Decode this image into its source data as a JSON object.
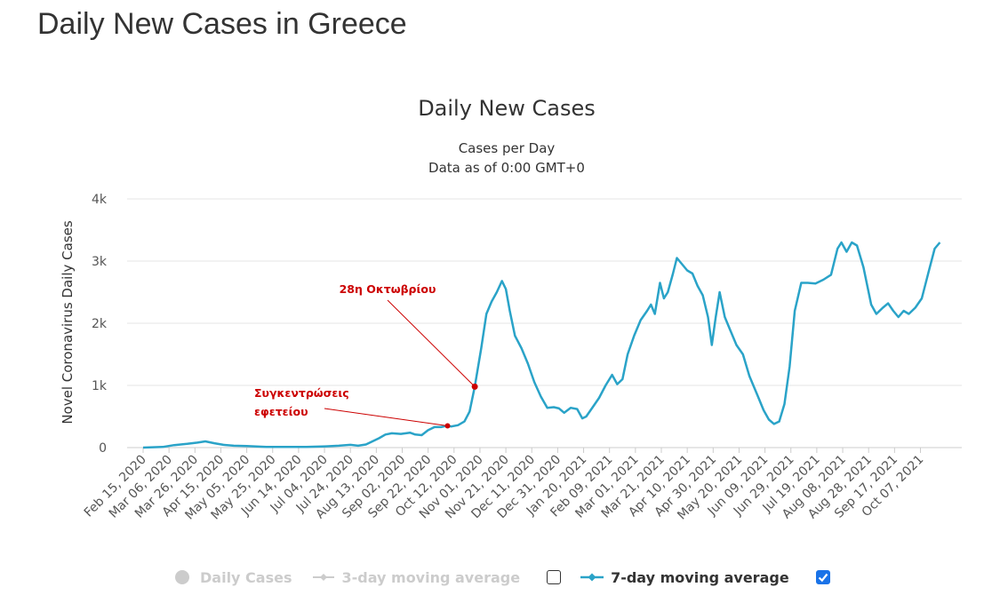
{
  "page": {
    "heading": "Daily New Cases in Greece"
  },
  "chart_data": {
    "type": "line",
    "title": "Daily New Cases",
    "subtitle_lines": [
      "Cases per Day",
      "Data as of 0:00 GMT+0"
    ],
    "ylabel": "Novel Coronavirus Daily Cases",
    "xlabel": "",
    "ylim": [
      0,
      4000
    ],
    "yticks": [
      0,
      1000,
      2000,
      3000,
      4000
    ],
    "ytick_labels": [
      "0",
      "1k",
      "2k",
      "3k",
      "4k"
    ],
    "xlim": [
      "2020-02-15",
      "2021-10-28"
    ],
    "xtick_labels": [
      "Feb 15, 2020",
      "Mar 06, 2020",
      "Mar 26, 2020",
      "Apr 15, 2020",
      "May 05, 2020",
      "May 25, 2020",
      "Jun 14, 2020",
      "Jul 04, 2020",
      "Jul 24, 2020",
      "Aug 13, 2020",
      "Sep 02, 2020",
      "Sep 22, 2020",
      "Oct 12, 2020",
      "Nov 01, 2020",
      "Nov 21, 2020",
      "Dec 11, 2020",
      "Dec 31, 2020",
      "Jan 20, 2021",
      "Feb 09, 2021",
      "Mar 01, 2021",
      "Mar 21, 2021",
      "Apr 10, 2021",
      "Apr 30, 2021",
      "May 20, 2021",
      "Jun 09, 2021",
      "Jun 29, 2021",
      "Jul 19, 2021",
      "Aug 08, 2021",
      "Aug 28, 2021",
      "Sep 17, 2021",
      "Oct 07, 2021"
    ],
    "grid": true,
    "series": [
      {
        "name": "7-day moving average",
        "color": "#2aa3c8",
        "visible": true,
        "points": [
          [
            "2020-02-15",
            0
          ],
          [
            "2020-03-01",
            10
          ],
          [
            "2020-03-10",
            40
          ],
          [
            "2020-03-20",
            60
          ],
          [
            "2020-03-28",
            80
          ],
          [
            "2020-04-03",
            100
          ],
          [
            "2020-04-10",
            70
          ],
          [
            "2020-04-17",
            45
          ],
          [
            "2020-04-25",
            30
          ],
          [
            "2020-05-05",
            25
          ],
          [
            "2020-05-20",
            12
          ],
          [
            "2020-06-05",
            10
          ],
          [
            "2020-06-20",
            12
          ],
          [
            "2020-07-05",
            20
          ],
          [
            "2020-07-15",
            30
          ],
          [
            "2020-07-24",
            45
          ],
          [
            "2020-07-30",
            30
          ],
          [
            "2020-08-05",
            50
          ],
          [
            "2020-08-10",
            100
          ],
          [
            "2020-08-15",
            150
          ],
          [
            "2020-08-20",
            210
          ],
          [
            "2020-08-25",
            230
          ],
          [
            "2020-09-01",
            220
          ],
          [
            "2020-09-08",
            240
          ],
          [
            "2020-09-12",
            210
          ],
          [
            "2020-09-17",
            200
          ],
          [
            "2020-09-22",
            280
          ],
          [
            "2020-09-27",
            330
          ],
          [
            "2020-10-02",
            330
          ],
          [
            "2020-10-06",
            350
          ],
          [
            "2020-10-10",
            340
          ],
          [
            "2020-10-15",
            360
          ],
          [
            "2020-10-20",
            420
          ],
          [
            "2020-10-24",
            580
          ],
          [
            "2020-10-28",
            980
          ],
          [
            "2020-11-02",
            1600
          ],
          [
            "2020-11-06",
            2150
          ],
          [
            "2020-11-10",
            2350
          ],
          [
            "2020-11-14",
            2500
          ],
          [
            "2020-11-18",
            2680
          ],
          [
            "2020-11-21",
            2550
          ],
          [
            "2020-11-24",
            2200
          ],
          [
            "2020-11-28",
            1800
          ],
          [
            "2020-12-03",
            1600
          ],
          [
            "2020-12-08",
            1350
          ],
          [
            "2020-12-13",
            1050
          ],
          [
            "2020-12-18",
            820
          ],
          [
            "2020-12-23",
            640
          ],
          [
            "2020-12-28",
            650
          ],
          [
            "2021-01-01",
            630
          ],
          [
            "2021-01-05",
            560
          ],
          [
            "2021-01-10",
            640
          ],
          [
            "2021-01-15",
            620
          ],
          [
            "2021-01-19",
            470
          ],
          [
            "2021-01-22",
            500
          ],
          [
            "2021-01-27",
            650
          ],
          [
            "2021-02-01",
            800
          ],
          [
            "2021-02-06",
            1000
          ],
          [
            "2021-02-11",
            1170
          ],
          [
            "2021-02-15",
            1020
          ],
          [
            "2021-02-19",
            1100
          ],
          [
            "2021-02-23",
            1500
          ],
          [
            "2021-02-28",
            1800
          ],
          [
            "2021-03-05",
            2050
          ],
          [
            "2021-03-10",
            2200
          ],
          [
            "2021-03-13",
            2300
          ],
          [
            "2021-03-16",
            2150
          ],
          [
            "2021-03-20",
            2650
          ],
          [
            "2021-03-23",
            2400
          ],
          [
            "2021-03-26",
            2500
          ],
          [
            "2021-03-30",
            2800
          ],
          [
            "2021-04-02",
            3050
          ],
          [
            "2021-04-06",
            2950
          ],
          [
            "2021-04-10",
            2850
          ],
          [
            "2021-04-14",
            2800
          ],
          [
            "2021-04-18",
            2600
          ],
          [
            "2021-04-22",
            2450
          ],
          [
            "2021-04-26",
            2100
          ],
          [
            "2021-04-29",
            1650
          ],
          [
            "2021-05-02",
            2100
          ],
          [
            "2021-05-05",
            2500
          ],
          [
            "2021-05-09",
            2100
          ],
          [
            "2021-05-13",
            1900
          ],
          [
            "2021-05-18",
            1650
          ],
          [
            "2021-05-23",
            1500
          ],
          [
            "2021-05-28",
            1150
          ],
          [
            "2021-06-03",
            850
          ],
          [
            "2021-06-08",
            600
          ],
          [
            "2021-06-12",
            450
          ],
          [
            "2021-06-16",
            380
          ],
          [
            "2021-06-20",
            420
          ],
          [
            "2021-06-24",
            700
          ],
          [
            "2021-06-28",
            1300
          ],
          [
            "2021-07-02",
            2200
          ],
          [
            "2021-07-07",
            2650
          ],
          [
            "2021-07-12",
            2650
          ],
          [
            "2021-07-18",
            2640
          ],
          [
            "2021-07-24",
            2700
          ],
          [
            "2021-07-30",
            2780
          ],
          [
            "2021-08-04",
            3200
          ],
          [
            "2021-08-07",
            3300
          ],
          [
            "2021-08-11",
            3150
          ],
          [
            "2021-08-15",
            3300
          ],
          [
            "2021-08-19",
            3250
          ],
          [
            "2021-08-24",
            2900
          ],
          [
            "2021-08-30",
            2300
          ],
          [
            "2021-09-03",
            2150
          ],
          [
            "2021-09-08",
            2250
          ],
          [
            "2021-09-12",
            2320
          ],
          [
            "2021-09-16",
            2200
          ],
          [
            "2021-09-20",
            2100
          ],
          [
            "2021-09-24",
            2200
          ],
          [
            "2021-09-28",
            2150
          ],
          [
            "2021-10-03",
            2250
          ],
          [
            "2021-10-08",
            2400
          ],
          [
            "2021-10-13",
            2800
          ],
          [
            "2021-10-18",
            3200
          ],
          [
            "2021-10-22",
            3300
          ]
        ]
      }
    ],
    "annotations": [
      {
        "text": "28η Οκτωβρίου",
        "x": "2020-10-28",
        "y": 980,
        "color": "#cc0000"
      },
      {
        "text_lines": [
          "Συγκεντρώσεις",
          "εφετείου"
        ],
        "x": "2020-10-07",
        "y": 350,
        "color": "#cc0000"
      }
    ]
  },
  "legend": {
    "items": [
      {
        "label": "Daily Cases",
        "state": "off"
      },
      {
        "label": "3-day moving average",
        "state": "off",
        "checked": false
      },
      {
        "label": "7-day moving average",
        "state": "on",
        "checked": true
      }
    ],
    "check_mark": "✓"
  }
}
